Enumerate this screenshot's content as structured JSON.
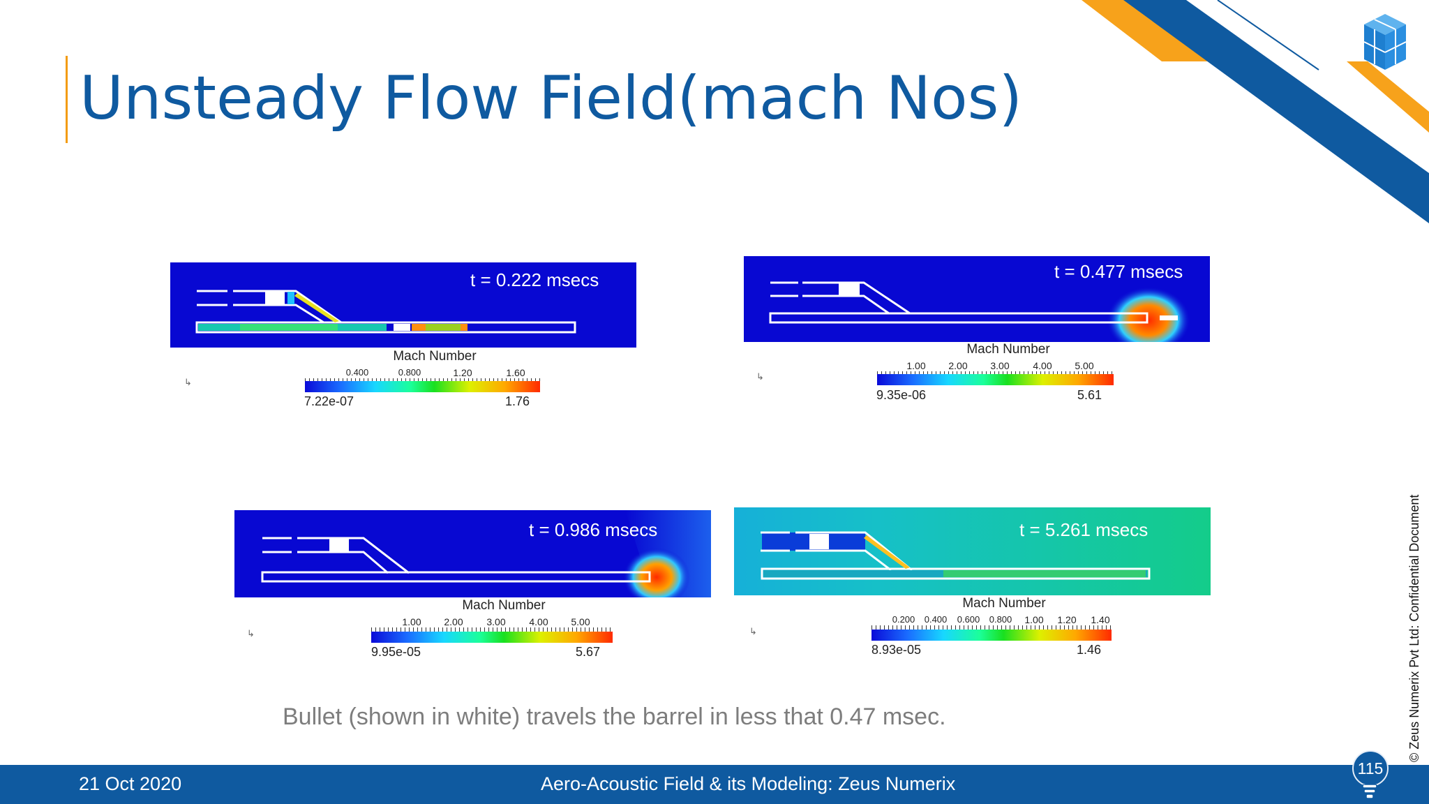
{
  "slide": {
    "title": "Unsteady Flow Field(mach Nos)",
    "caption": "Bullet (shown in white) travels the barrel in less that 0.47 msec.",
    "copyright": "© Zeus Numerix Pvt Ltd: Confidential Document",
    "colors": {
      "brand_blue": "#0f5aa0",
      "accent_orange": "#f39c12"
    }
  },
  "panels": [
    {
      "time_label": "t = 0.222 msecs",
      "colorbar": {
        "title": "Mach Number",
        "ticks": [
          "0.400",
          "0.800",
          "1.20",
          "1.60"
        ],
        "min": "7.22e-07",
        "max": "1.76"
      }
    },
    {
      "time_label": "t = 0.477 msecs",
      "colorbar": {
        "title": "Mach Number",
        "ticks": [
          "1.00",
          "2.00",
          "3.00",
          "4.00",
          "5.00"
        ],
        "min": "9.35e-06",
        "max": "5.61"
      }
    },
    {
      "time_label": "t = 0.986 msecs",
      "colorbar": {
        "title": "Mach Number",
        "ticks": [
          "1.00",
          "2.00",
          "3.00",
          "4.00",
          "5.00"
        ],
        "min": "9.95e-05",
        "max": "5.67"
      }
    },
    {
      "time_label": "t = 5.261 msecs",
      "colorbar": {
        "title": "Mach Number",
        "ticks": [
          "0.200",
          "0.400",
          "0.600",
          "0.800",
          "1.00",
          "1.20",
          "1.40"
        ],
        "min": "8.93e-05",
        "max": "1.46"
      }
    }
  ],
  "footer": {
    "date": "21 Oct 2020",
    "title": "Aero-Acoustic Field & its Modeling: Zeus Numerix",
    "page_number": "115"
  }
}
